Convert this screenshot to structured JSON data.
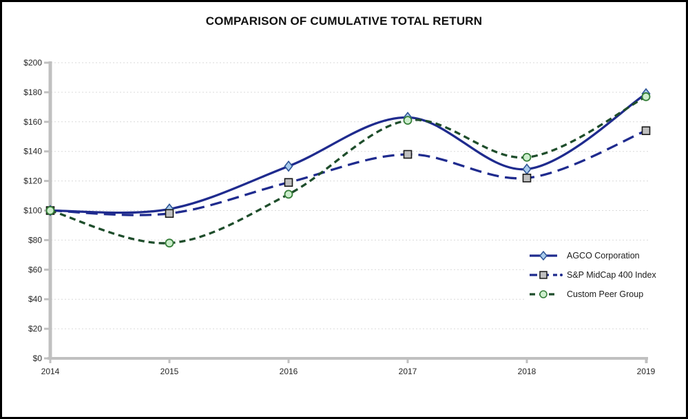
{
  "chart_data": {
    "type": "line",
    "title": "COMPARISON OF CUMULATIVE TOTAL RETURN",
    "categories": [
      "2014",
      "2015",
      "2016",
      "2017",
      "2018",
      "2019"
    ],
    "series": [
      {
        "name": "AGCO Corporation",
        "values": [
          100,
          101,
          130,
          163,
          128,
          179
        ],
        "color": "#1f2b8e",
        "dash": "solid",
        "marker": "diamond",
        "marker_fill": "#a9cbec",
        "marker_stroke": "#2e5496",
        "legend_dot": false
      },
      {
        "name": "S&P MidCap 400 Index",
        "values": [
          100,
          98,
          119,
          138,
          122,
          154
        ],
        "color": "#1f2b8e",
        "dash": "long-dash",
        "marker": "square",
        "marker_fill": "#c0c0c0",
        "marker_stroke": "#1a1a1a",
        "legend_dot": true
      },
      {
        "name": "Custom Peer Group",
        "values": [
          100,
          78,
          111,
          161,
          136,
          177
        ],
        "color": "#1e4d2b",
        "dash": "short-dash",
        "marker": "circle",
        "marker_fill": "#cdeecd",
        "marker_stroke": "#357e38",
        "legend_dot": false
      }
    ],
    "xlabel": "",
    "ylabel": "",
    "ylim": [
      0,
      200
    ],
    "y_tick_step": 20,
    "y_ticks": [
      "$0",
      "$20",
      "$40",
      "$60",
      "$80",
      "$100",
      "$120",
      "$140",
      "$160",
      "$180",
      "$200"
    ],
    "grid": "horizontal-dashed",
    "legend_position": "inside-right",
    "axis_color": "#c0c0c0",
    "gridline_color": "#d9d9d9",
    "tick_label_color": "#262626"
  }
}
